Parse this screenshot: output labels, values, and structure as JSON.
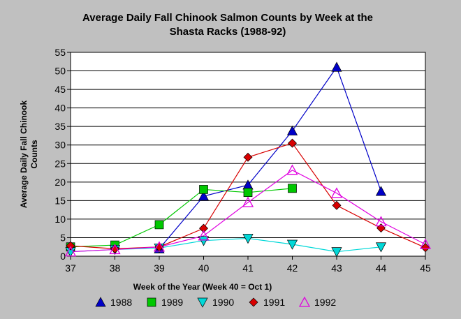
{
  "chart_data": {
    "type": "line",
    "title_line1": "Average Daily Fall Chinook Salmon Counts by Week at the",
    "title_line2": "Shasta Racks (1988-92)",
    "xlabel": "Week of the Year (Week 40 = Oct 1)",
    "ylabel_line1": "Average Daily Fall Chinook",
    "ylabel_line2": "Counts",
    "xlim": [
      37,
      45
    ],
    "ylim": [
      0,
      55
    ],
    "x_ticks": [
      37,
      38,
      39,
      40,
      41,
      42,
      43,
      44,
      45
    ],
    "y_ticks": [
      0,
      5,
      10,
      15,
      20,
      25,
      30,
      35,
      40,
      45,
      50,
      55
    ],
    "grid": "horizontal",
    "legend_position": "bottom",
    "series": [
      {
        "name": "1988",
        "color": "#0000c8",
        "marker": "triangle-up",
        "points": [
          [
            39,
            2
          ],
          [
            40,
            16.2
          ],
          [
            41,
            19.2
          ],
          [
            42,
            33.8
          ],
          [
            43,
            51
          ],
          [
            44,
            17.5
          ]
        ]
      },
      {
        "name": "1989",
        "color": "#00c800",
        "marker": "square",
        "points": [
          [
            37,
            2.5
          ],
          [
            38,
            3
          ],
          [
            39,
            8.5
          ],
          [
            40,
            18
          ],
          [
            41,
            17.2
          ],
          [
            42,
            18.3
          ]
        ]
      },
      {
        "name": "1990",
        "color": "#00d8d8",
        "marker": "triangle-down",
        "points": [
          [
            37,
            1.2
          ],
          [
            38,
            1.8
          ],
          [
            39,
            2.2
          ],
          [
            40,
            4.2
          ],
          [
            41,
            4.8
          ],
          [
            42,
            3.2
          ],
          [
            43,
            1.2
          ],
          [
            44,
            2.5
          ]
        ]
      },
      {
        "name": "1991",
        "color": "#d80000",
        "marker": "diamond",
        "points": [
          [
            37,
            2.8
          ],
          [
            38,
            2
          ],
          [
            39,
            2.5
          ],
          [
            40,
            7.5
          ],
          [
            41,
            26.7
          ],
          [
            42,
            30.5
          ],
          [
            43,
            13.7
          ],
          [
            44,
            7.6
          ],
          [
            45,
            2.3
          ]
        ]
      },
      {
        "name": "1992",
        "color": "#e000e0",
        "marker": "triangle-up-open",
        "points": [
          [
            37,
            1.2
          ],
          [
            38,
            1.8
          ],
          [
            39,
            2.5
          ],
          [
            40,
            5.5
          ],
          [
            41,
            14.5
          ],
          [
            42,
            23.2
          ],
          [
            43,
            17
          ],
          [
            44,
            9.3
          ],
          [
            45,
            3.2
          ]
        ]
      }
    ]
  }
}
